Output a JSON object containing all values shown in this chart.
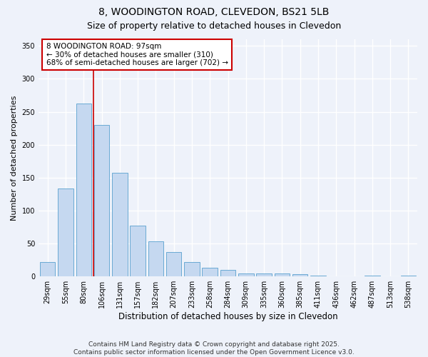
{
  "title": "8, WOODINGTON ROAD, CLEVEDON, BS21 5LB",
  "subtitle": "Size of property relative to detached houses in Clevedon",
  "xlabel": "Distribution of detached houses by size in Clevedon",
  "ylabel": "Number of detached properties",
  "categories": [
    "29sqm",
    "55sqm",
    "80sqm",
    "106sqm",
    "131sqm",
    "157sqm",
    "182sqm",
    "207sqm",
    "233sqm",
    "258sqm",
    "284sqm",
    "309sqm",
    "335sqm",
    "360sqm",
    "385sqm",
    "411sqm",
    "436sqm",
    "462sqm",
    "487sqm",
    "513sqm",
    "538sqm"
  ],
  "values": [
    22,
    133,
    263,
    230,
    157,
    77,
    53,
    37,
    22,
    13,
    10,
    5,
    5,
    5,
    3,
    1,
    0,
    0,
    1,
    0,
    1
  ],
  "bar_color": "#c5d8f0",
  "bar_edge_color": "#6aaad4",
  "property_line_color": "#cc0000",
  "annotation_text": "8 WOODINGTON ROAD: 97sqm\n← 30% of detached houses are smaller (310)\n68% of semi-detached houses are larger (702) →",
  "annotation_box_color": "#ffffff",
  "annotation_box_edge": "#cc0000",
  "ylim": [
    0,
    360
  ],
  "yticks": [
    0,
    50,
    100,
    150,
    200,
    250,
    300,
    350
  ],
  "background_color": "#eef2fa",
  "grid_color": "#ffffff",
  "footer": "Contains HM Land Registry data © Crown copyright and database right 2025.\nContains public sector information licensed under the Open Government Licence v3.0.",
  "title_fontsize": 10,
  "subtitle_fontsize": 9,
  "xlabel_fontsize": 8.5,
  "ylabel_fontsize": 8,
  "tick_fontsize": 7,
  "annotation_fontsize": 7.5,
  "footer_fontsize": 6.5
}
